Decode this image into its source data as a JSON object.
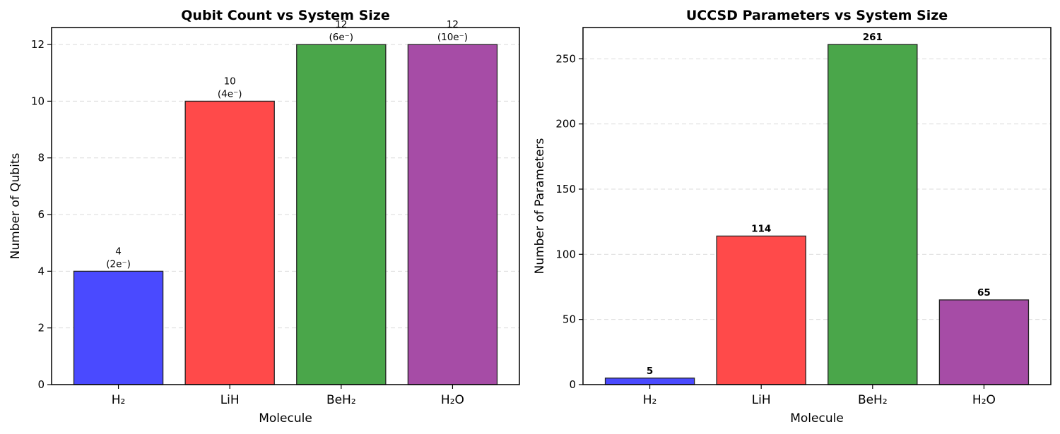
{
  "chart_data": [
    {
      "type": "bar",
      "title": "Qubit Count vs System Size",
      "xlabel": "Molecule",
      "ylabel": "Number of Qubits",
      "categories": [
        "H₂",
        "LiH",
        "BeH₂",
        "H₂O"
      ],
      "values": [
        4,
        10,
        12,
        12
      ],
      "bar_labels": [
        [
          "4",
          "(2e⁻)"
        ],
        [
          "10",
          "(4e⁻)"
        ],
        [
          "12",
          "(6e⁻)"
        ],
        [
          "12",
          "(10e⁻)"
        ]
      ],
      "colors": [
        "#4a4aff",
        "#ff4a4a",
        "#4aa64a",
        "#a64ca6"
      ],
      "ylim": [
        0,
        12.6
      ],
      "yticks": [
        0,
        2,
        4,
        6,
        8,
        10,
        12
      ],
      "grid": "y-dashed",
      "bar_label_style": "normal"
    },
    {
      "type": "bar",
      "title": "UCCSD Parameters vs System Size",
      "xlabel": "Molecule",
      "ylabel": "Number of Parameters",
      "categories": [
        "H₂",
        "LiH",
        "BeH₂",
        "H₂O"
      ],
      "values": [
        5,
        114,
        261,
        65
      ],
      "bar_labels": [
        [
          "5"
        ],
        [
          "114"
        ],
        [
          "261"
        ],
        [
          "65"
        ]
      ],
      "colors": [
        "#4a4aff",
        "#ff4a4a",
        "#4aa64a",
        "#a64ca6"
      ],
      "ylim": [
        0,
        274
      ],
      "yticks": [
        0,
        50,
        100,
        150,
        200,
        250
      ],
      "grid": "y-dashed",
      "bar_label_style": "bold"
    }
  ]
}
